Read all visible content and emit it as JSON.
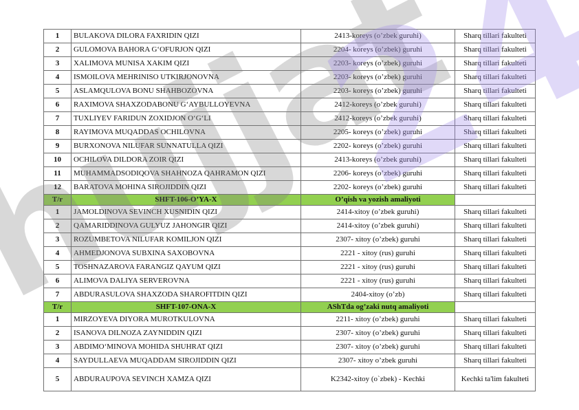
{
  "colors": {
    "header_green": "#92d050",
    "border_gray": "#6f6f6f",
    "watermark_gray": "rgba(125,125,125,0.30)",
    "watermark_purple": "rgba(158,138,232,0.32)"
  },
  "watermark": {
    "text": "hujjat",
    "badge": "24"
  },
  "table": {
    "column_headers": [
      "T/r",
      "",
      "",
      ""
    ],
    "sections": [
      {
        "header": null,
        "rows": [
          {
            "n": "1",
            "name": "BULAKOVA DILORA FAXRIDIN QIZI",
            "group": "2413-koreys (o’zbek guruhi)",
            "faculty": "Sharq tillari fakulteti"
          },
          {
            "n": "2",
            "name": "GULOMOVA BAHORA GʻOFURJON QIZI",
            "group": "2204- koreys (o’zbek) guruhi",
            "faculty": "Sharq tillari fakulteti"
          },
          {
            "n": "3",
            "name": "XALIMOVA MUNISA XAKIM QIZI",
            "group": "2203- koreys (o’zbek) guruhi",
            "faculty": "Sharq tillari fakulteti"
          },
          {
            "n": "4",
            "name": "ISMOILOVA MEHRINISO UTKIRJONOVNA",
            "group": "2203- koreys (o’zbek) guruhi",
            "faculty": "Sharq tillari fakulteti"
          },
          {
            "n": "5",
            "name": "ASLAMQULOVA BONU SHAHBOZOVNA",
            "group": "2203- koreys (o’zbek) guruhi",
            "faculty": "Sharq tillari fakulteti"
          },
          {
            "n": "6",
            "name": "RAXIMOVA SHAXZODABONU GʻAYBULLOYEVNA",
            "group": "2412-koreys (o’zbek guruhi)",
            "faculty": "Sharq tillari fakulteti"
          },
          {
            "n": "7",
            "name": "TUXLIYEV FARIDUN ZOXIDJON OʻGʻLI",
            "group": "2412-koreys (o’zbek guruhi)",
            "faculty": "Sharq tillari fakulteti"
          },
          {
            "n": "8",
            "name": "RAYIMOVA MUQADDAS OCHILOVNA",
            "group": "2205- koreys (o’zbek) guruhi",
            "faculty": "Sharq tillari fakulteti"
          },
          {
            "n": "9",
            "name": "BURXONOVA NILUFAR SUNNATULLA QIZI",
            "group": "2202- koreys (o’zbek) guruhi",
            "faculty": "Sharq tillari fakulteti"
          },
          {
            "n": "10",
            "name": "OCHILOVA DILDORA ZOIR QIZI",
            "group": "2413-koreys (o’zbek guruhi)",
            "faculty": "Sharq tillari fakulteti"
          },
          {
            "n": "11",
            "name": "MUHAMMADSODIQOVA SHAHNOZA QAHRAMON QIZI",
            "group": "2206- koreys (o’zbek) guruhi",
            "faculty": "Sharq tillari fakulteti"
          },
          {
            "n": "12",
            "name": "BARATOVA MOHINA SIROJIDDIN QIZI",
            "group": "2202- koreys (o’zbek) guruhi",
            "faculty": "Sharq tillari fakulteti"
          }
        ]
      },
      {
        "header": {
          "tr_label": "T/r",
          "code": "SHFT-106-O’YA-X",
          "subject": "O’qish va yozish amaliyoti"
        },
        "rows": [
          {
            "n": "1",
            "name": "JAMOLDINOVA SEVINCH XUSNIDIN QIZI",
            "group": "2414-xitoy (o’zbek guruhi)",
            "faculty": "Sharq tillari fakulteti"
          },
          {
            "n": "2",
            "name": "QAMARIDDINOVA GULYUZ JAHONGIR QIZI",
            "group": "2414-xitoy (o’zbek guruhi)",
            "faculty": "Sharq tillari fakulteti"
          },
          {
            "n": "3",
            "name": "ROZUMBETOVA NILUFAR KOMILJON QIZI",
            "group": "2307- xitoy (o’zbek) guruhi",
            "faculty": "Sharq tillari fakulteti"
          },
          {
            "n": "4",
            "name": "AHMEDJONOVA SUBXINA SAXOBOVNA",
            "group": "2221 - xitoy (rus) guruhi",
            "faculty": "Sharq tillari fakulteti"
          },
          {
            "n": "5",
            "name": "TOSHNAZAROVA FARANGIZ QAYUM QIZI",
            "group": "2221 - xitoy (rus) guruhi",
            "faculty": "Sharq tillari fakulteti"
          },
          {
            "n": "6",
            "name": "ALIMOVA DALIYA SERVEROVNA",
            "group": "2221 - xitoy (rus) guruhi",
            "faculty": "Sharq tillari fakulteti"
          },
          {
            "n": "7",
            "name": "ABDURASULOVA SHAXZODA SHAROFITDIN QIZI",
            "group": "2404-xitoy (o’zb)",
            "faculty": "Sharq tillari fakulteti"
          }
        ]
      },
      {
        "header": {
          "tr_label": "T/r",
          "code": "SHFT-107-ONA-X",
          "subject": "AShTda og’zaki nutq amaliyoti"
        },
        "rows": [
          {
            "n": "1",
            "name": "MIRZOYEVA DIYORA MUROTKULOVNA",
            "group": "2211- xitoy (o’zbek) guruhi",
            "faculty": "Sharq tillari fakulteti"
          },
          {
            "n": "2",
            "name": "ISANOVA DILNOZA ZAYNIDDIN QIZI",
            "group": "2307- xitoy (o’zbek) guruhi",
            "faculty": "Sharq tillari fakulteti"
          },
          {
            "n": "3",
            "name": "ABDIMOʻMINOVA MOHIDA SHUHRAT QIZI",
            "group": "2307- xitoy (o’zbek) guruhi",
            "faculty": "Sharq tillari fakulteti"
          },
          {
            "n": "4",
            "name": "SAYDULLAEVA MUQADDAM SIROJIDDIN QIZI",
            "group": "2307- xitoy o’zbek guruhi",
            "faculty": "Sharq tillari fakulteti"
          },
          {
            "n": "5",
            "name": "ABDURAUPOVA SEVINCH XAMZA QIZI",
            "group": "K2342-xitoy (o`zbek) - Kechki",
            "faculty": "Kechki ta'lim fakulteti",
            "tall": true
          }
        ]
      }
    ]
  }
}
